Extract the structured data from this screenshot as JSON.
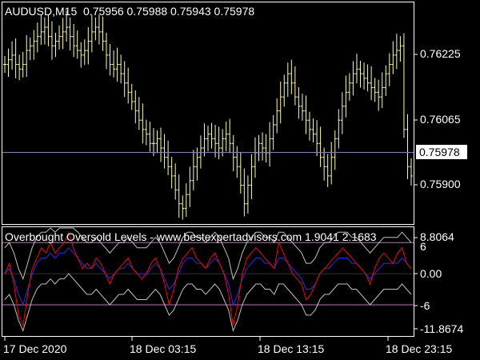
{
  "header": {
    "symbol": "AUDUSD,M15",
    "open": "0.75956",
    "high": "0.75988",
    "low": "0.75943",
    "close": "0.75978"
  },
  "price_axis": {
    "labels": [
      "0.76225",
      "0.76065",
      "0.75900"
    ],
    "current_price": "0.75978"
  },
  "indicator": {
    "title": "Overbought Oversold Levels - www.bestexpertadvisors.com 1.9041 2.1683",
    "axis_labels": [
      "8.8064",
      "6",
      "0.00",
      "-6",
      "-11.8674"
    ]
  },
  "time_axis": {
    "labels": [
      "17 Dec 2020",
      "18 Dec 03:15",
      "18 Dec 13:15",
      "18 Dec 23:15"
    ]
  },
  "colors": {
    "background": "#000000",
    "bars": "#ffff99",
    "frame": "#ffffff",
    "price_line": "#8080c0",
    "level_line": "#cc66cc",
    "red_line": "#ff0000",
    "blue_line": "#2a2aff",
    "band": "#c0c0c0"
  },
  "chart_data": {
    "type": "line",
    "ohlc_closes": [
      0.762,
      0.7621,
      0.7622,
      0.762,
      0.7619,
      0.762,
      0.7623,
      0.7624,
      0.7625,
      0.7626,
      0.7627,
      0.7628,
      0.7626,
      0.7624,
      0.7625,
      0.7626,
      0.7627,
      0.7628,
      0.7626,
      0.7624,
      0.7623,
      0.7622,
      0.7623,
      0.7625,
      0.7627,
      0.7628,
      0.7627,
      0.7625,
      0.7622,
      0.762,
      0.7619,
      0.762,
      0.7618,
      0.7616,
      0.7614,
      0.7612,
      0.761,
      0.7608,
      0.7606,
      0.7605,
      0.7603,
      0.7603,
      0.7604,
      0.7602,
      0.76,
      0.7598,
      0.7596,
      0.7593,
      0.759,
      0.7589,
      0.7592,
      0.7595,
      0.7598,
      0.76,
      0.7602,
      0.7604,
      0.7605,
      0.7604,
      0.7603,
      0.7602,
      0.7604,
      0.7605,
      0.7603,
      0.76,
      0.7598,
      0.7594,
      0.759,
      0.7594,
      0.7598,
      0.7601,
      0.7603,
      0.7602,
      0.7601,
      0.7604,
      0.7607,
      0.761,
      0.7613,
      0.7616,
      0.7618,
      0.7616,
      0.7613,
      0.7611,
      0.761,
      0.7608,
      0.7606,
      0.7605,
      0.7603,
      0.76,
      0.7598,
      0.7596,
      0.76,
      0.7604,
      0.7608,
      0.7611,
      0.7614,
      0.7616,
      0.7618,
      0.7619,
      0.7618,
      0.7617,
      0.7616,
      0.7615,
      0.7614,
      0.7613,
      0.7615,
      0.7618,
      0.762,
      0.7622,
      0.7623,
      0.7624,
      0.7606,
      0.7598,
      0.7596
    ],
    "indicator_red": [
      0,
      2,
      -2,
      -8,
      -10,
      -4,
      1,
      3,
      5,
      4,
      6,
      4,
      5,
      6,
      8,
      5,
      3,
      1,
      2,
      1,
      3,
      2,
      0,
      -2,
      0,
      1,
      2,
      3,
      1,
      0,
      -1,
      0,
      2,
      3,
      1,
      -2,
      -6,
      -3,
      1,
      3,
      4,
      5,
      3,
      2,
      1,
      3,
      4,
      2,
      0,
      -4,
      -10,
      -6,
      0,
      3,
      4,
      5,
      4,
      3,
      2,
      1,
      6,
      4,
      2,
      0,
      -1,
      -2,
      -5,
      -4,
      -2,
      0,
      1,
      2,
      3,
      4,
      5,
      4,
      3,
      2,
      1,
      0,
      -2,
      1,
      3,
      4,
      3,
      2,
      4,
      5,
      2,
      1
    ],
    "indicator_blue": [
      0,
      1,
      -1,
      -4,
      -6,
      -3,
      0,
      2,
      3,
      3,
      4,
      3,
      4,
      4,
      5,
      4,
      3,
      2,
      1,
      1,
      2,
      1,
      0,
      -1,
      0,
      1,
      1,
      2,
      1,
      0,
      0,
      0,
      1,
      2,
      1,
      -1,
      -3,
      -2,
      0,
      2,
      3,
      3,
      2,
      2,
      1,
      2,
      3,
      2,
      0,
      -2,
      -6,
      -4,
      -1,
      1,
      2,
      3,
      3,
      2,
      2,
      1,
      3,
      3,
      2,
      1,
      0,
      -1,
      -3,
      -3,
      -2,
      0,
      1,
      1,
      2,
      3,
      3,
      3,
      2,
      2,
      1,
      0,
      -1,
      0,
      1,
      2,
      2,
      2,
      2,
      3,
      2,
      1
    ],
    "levels": [
      6,
      0,
      -6
    ],
    "ylim_price": [
      0.7586,
      0.7633
    ],
    "ylim_indicator": [
      -11.8674,
      8.8064
    ],
    "grid": false
  }
}
